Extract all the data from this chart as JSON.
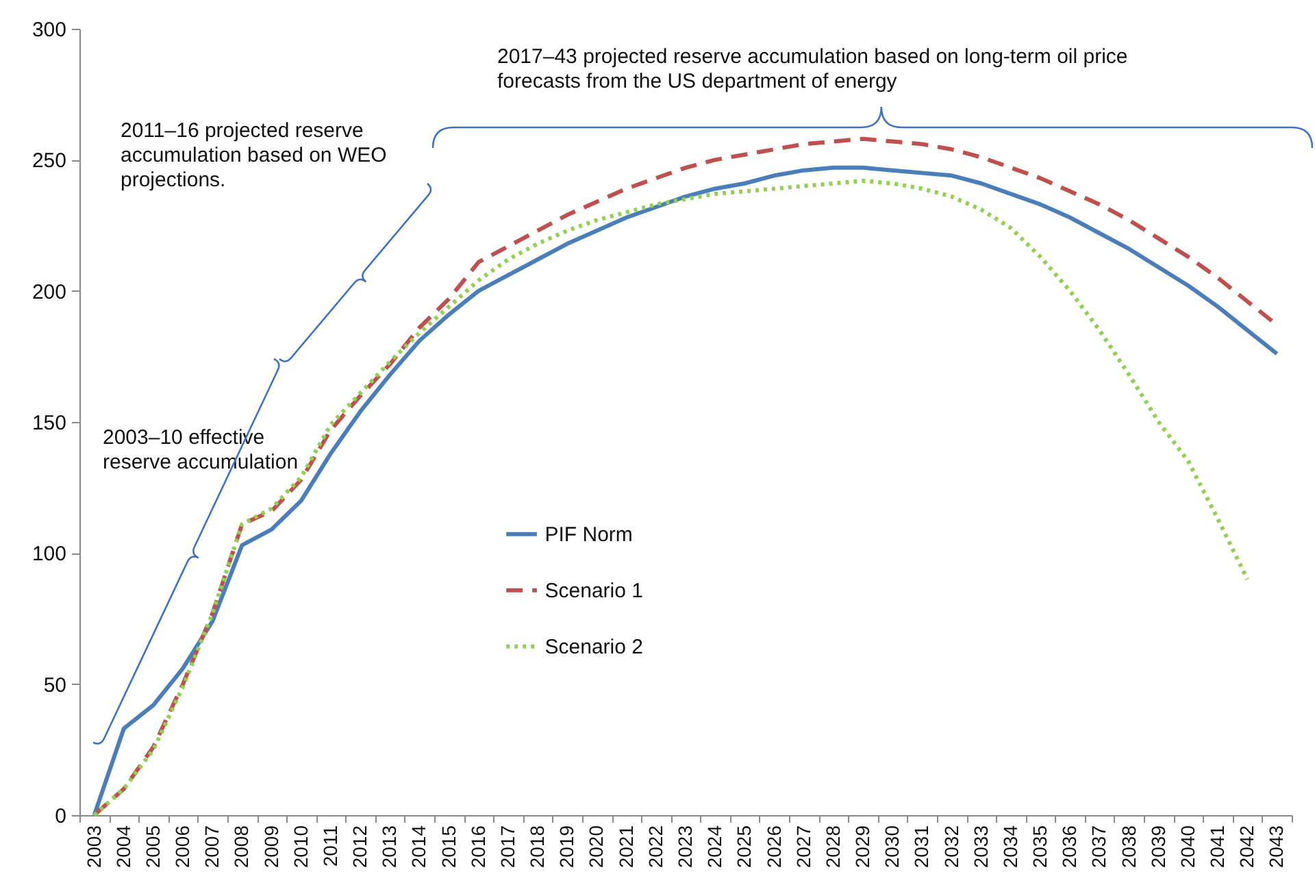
{
  "chart_data": {
    "type": "line",
    "categories": [
      "2003",
      "2004",
      "2005",
      "2006",
      "2007",
      "2008",
      "2009",
      "2010",
      "2011",
      "2012",
      "2013",
      "2014",
      "2015",
      "2016",
      "2017",
      "2018",
      "2019",
      "2020",
      "2021",
      "2022",
      "2023",
      "2024",
      "2025",
      "2026",
      "2027",
      "2028",
      "2029",
      "2030",
      "2031",
      "2032",
      "2033",
      "2034",
      "2035",
      "2036",
      "2037",
      "2038",
      "2039",
      "2040",
      "2041",
      "2042",
      "2043"
    ],
    "series": [
      {
        "name": "PIF Norm",
        "color": "#4a7ebb",
        "line_style": "solid",
        "values": [
          0,
          33,
          42,
          56,
          74,
          103,
          109,
          120,
          138,
          154,
          168,
          181,
          191,
          200,
          206,
          212,
          218,
          223,
          228,
          232,
          236,
          239,
          241,
          244,
          246,
          247,
          247,
          246,
          245,
          244,
          241,
          237,
          233,
          228,
          222,
          216,
          209,
          202,
          194,
          185,
          176
        ]
      },
      {
        "name": "Scenario 1",
        "color": "#c0504d",
        "line_style": "dashed",
        "values": [
          0,
          10,
          26,
          50,
          77,
          111,
          116,
          128,
          147,
          160,
          172,
          186,
          197,
          211,
          217,
          223,
          229,
          234,
          239,
          243,
          247,
          250,
          252,
          254,
          256,
          257,
          258,
          257,
          256,
          254,
          251,
          247,
          243,
          238,
          233,
          227,
          220,
          213,
          205,
          196,
          187
        ]
      },
      {
        "name": "Scenario 2",
        "color": "#92d050",
        "line_style": "dotted",
        "values": [
          0,
          10,
          25,
          49,
          77,
          111,
          117,
          129,
          149,
          161,
          173,
          184,
          194,
          204,
          212,
          218,
          223,
          227,
          230,
          233,
          235,
          237,
          238,
          239,
          240,
          241,
          242,
          241,
          239,
          236,
          231,
          224,
          213,
          200,
          185,
          168,
          150,
          135,
          113,
          90,
          null
        ]
      }
    ],
    "ylim": [
      0,
      300
    ],
    "yticks": [
      0,
      50,
      100,
      150,
      200,
      250,
      300
    ],
    "legend": "center",
    "annotations": [
      "2003–10 effective reserve accumulation",
      "2011–16 projected reserve accumulation based on WEO projections.",
      "2017–43 projected reserve accumulation based on long-term oil price forecasts from the US department of energy"
    ]
  }
}
